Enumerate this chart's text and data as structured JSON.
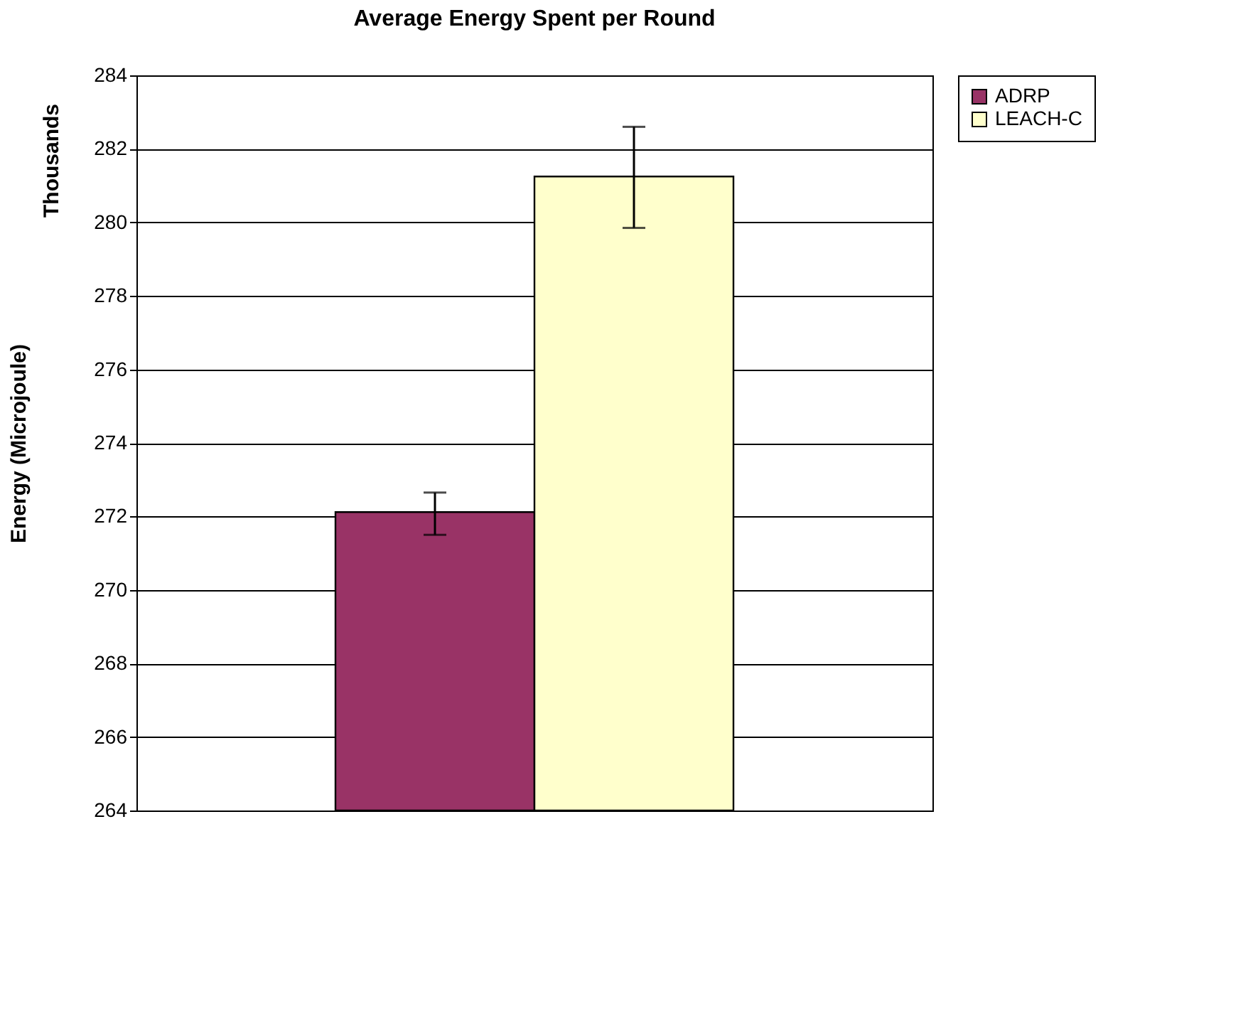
{
  "chart_data": {
    "type": "bar",
    "title": "Average Energy Spent per Round",
    "ylabel": "Energy (Microjoule)",
    "annotations": [
      "Thousands"
    ],
    "categories": [
      null
    ],
    "series": [
      {
        "name": "ADRP",
        "color": "#993366",
        "values": [
          272.12
        ],
        "errors": [
          [
            271.5,
            272.65
          ]
        ]
      },
      {
        "name": "LEACH-C",
        "color": "#ffffcc",
        "values": [
          281.25
        ],
        "errors": [
          [
            279.85,
            282.6
          ]
        ]
      }
    ],
    "ylim": [
      264,
      284
    ],
    "yticks": [
      264,
      266,
      268,
      270,
      272,
      274,
      276,
      278,
      280,
      282,
      284
    ],
    "grid": "y",
    "legend": "right",
    "tick_labels": "y"
  }
}
